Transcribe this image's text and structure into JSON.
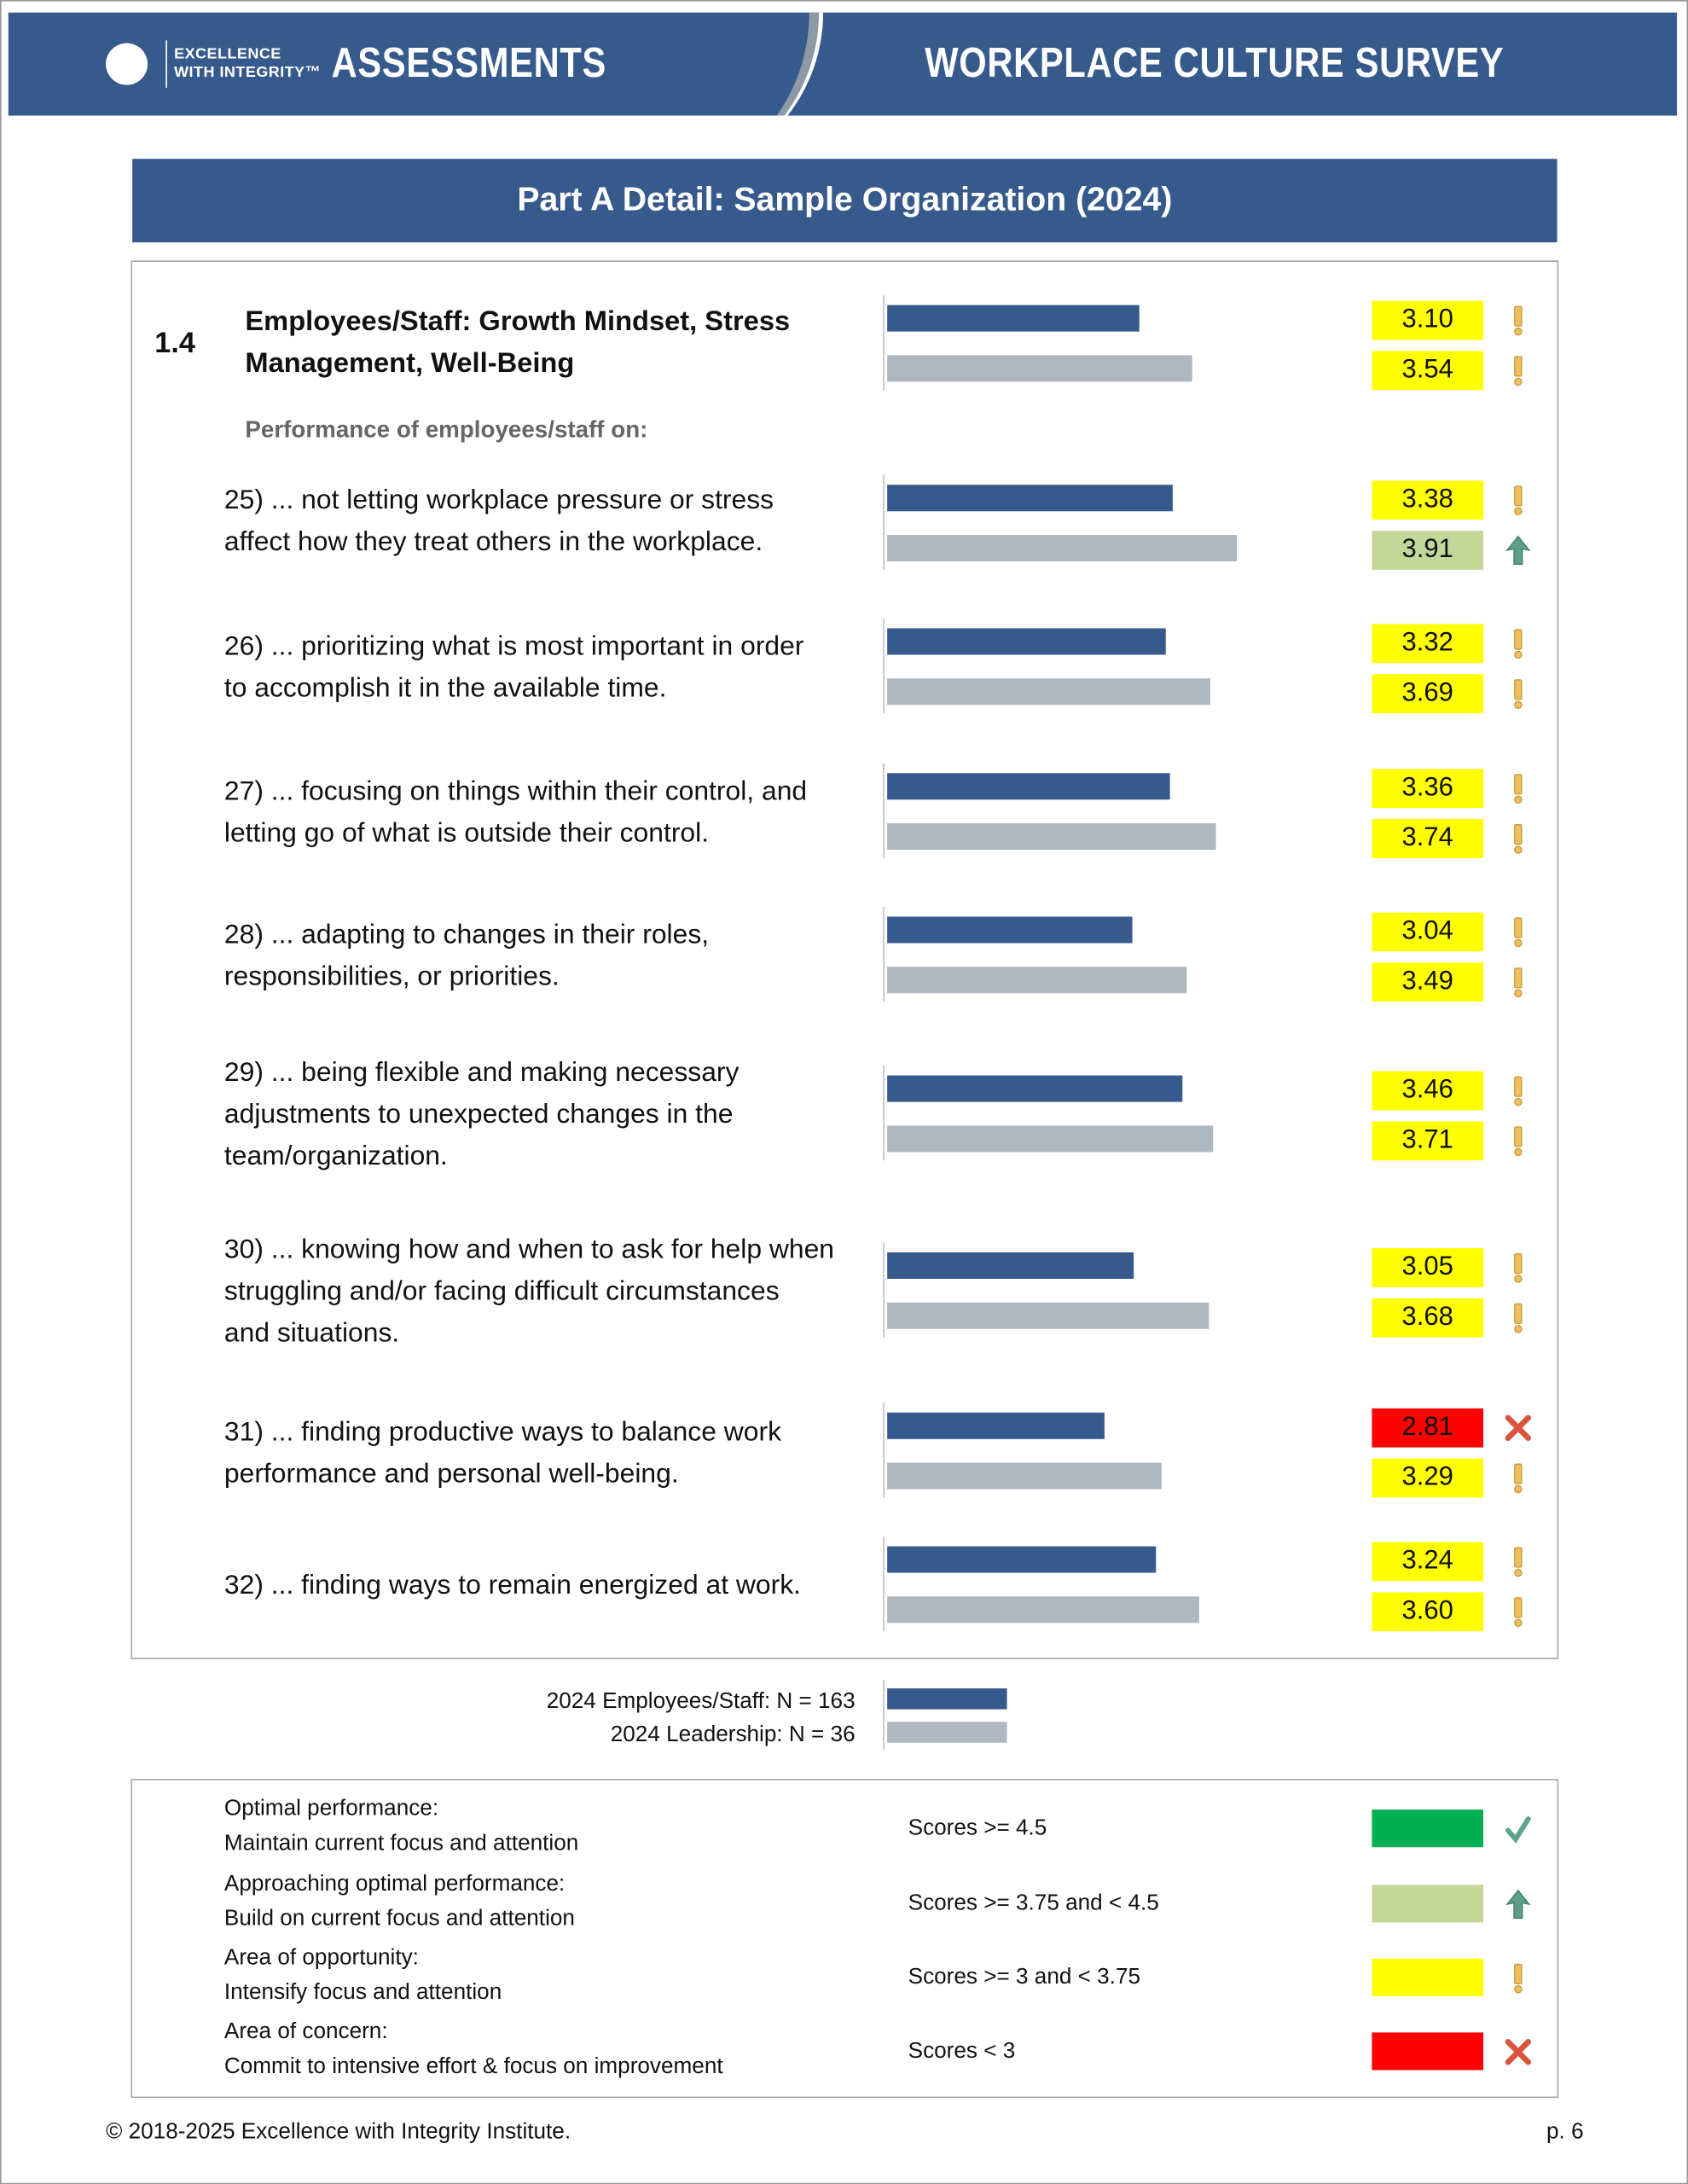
{
  "header": {
    "logo_line1": "EXCELLENCE",
    "logo_line2": "WITH INTEGRITY™",
    "product": "ASSESSMENTS",
    "survey": "WORKPLACE CULTURE SURVEY"
  },
  "page_title": "Part A Detail: Sample Organization (2024)",
  "section": {
    "number": "1.4",
    "title_lines": [
      "Employees/Staff: Growth Mindset, Stress",
      "Management, Well-Being"
    ],
    "employees_score": 3.1,
    "leadership_score": 3.54,
    "employees_label": "3.10",
    "leadership_label": "3.54",
    "employees_status": "opportunity",
    "leadership_status": "opportunity",
    "subheading": "Performance of employees/staff on:"
  },
  "items": [
    {
      "lines": [
        "25) ... not letting workplace pressure or stress",
        "affect how they treat others in the workplace."
      ],
      "employees": 3.38,
      "leadership": 3.91,
      "employees_label": "3.38",
      "leadership_label": "3.91",
      "employees_status": "opportunity",
      "leadership_status": "approaching"
    },
    {
      "lines": [
        "26) ... prioritizing what is most important in order",
        "to accomplish it in the available time."
      ],
      "employees": 3.32,
      "leadership": 3.69,
      "employees_label": "3.32",
      "leadership_label": "3.69",
      "employees_status": "opportunity",
      "leadership_status": "opportunity"
    },
    {
      "lines": [
        "27) ... focusing on things within their control, and",
        "letting go of what is outside their control."
      ],
      "employees": 3.36,
      "leadership": 3.74,
      "employees_label": "3.36",
      "leadership_label": "3.74",
      "employees_status": "opportunity",
      "leadership_status": "opportunity"
    },
    {
      "lines": [
        "28) ... adapting to changes in their roles,",
        "responsibilities, or priorities."
      ],
      "employees": 3.04,
      "leadership": 3.49,
      "employees_label": "3.04",
      "leadership_label": "3.49",
      "employees_status": "opportunity",
      "leadership_status": "opportunity"
    },
    {
      "lines": [
        "29) ... being flexible and making necessary",
        "adjustments to unexpected changes in the",
        "team/organization."
      ],
      "employees": 3.46,
      "leadership": 3.71,
      "employees_label": "3.46",
      "leadership_label": "3.71",
      "employees_status": "opportunity",
      "leadership_status": "opportunity"
    },
    {
      "lines": [
        "30) ... knowing how and when to ask for help when",
        "struggling and/or facing difficult circumstances",
        "and situations."
      ],
      "employees": 3.05,
      "leadership": 3.68,
      "employees_label": "3.05",
      "leadership_label": "3.68",
      "employees_status": "opportunity",
      "leadership_status": "opportunity"
    },
    {
      "lines": [
        "31) ... finding productive ways to balance work",
        "performance and personal well-being."
      ],
      "employees": 2.81,
      "leadership": 3.29,
      "employees_label": "2.81",
      "leadership_label": "3.29",
      "employees_status": "concern",
      "leadership_status": "opportunity"
    },
    {
      "lines": [
        "32) ... finding ways to remain energized at work."
      ],
      "employees": 3.24,
      "leadership": 3.6,
      "employees_label": "3.24",
      "leadership_label": "3.60",
      "employees_status": "opportunity",
      "leadership_status": "opportunity"
    }
  ],
  "scale": {
    "min": 1,
    "max": 5
  },
  "series_legend": {
    "employees": "2024 Employees/Staff: N = 163",
    "leadership": "2024 Leadership: N = 36",
    "employees_color": "#375A8C",
    "leadership_color": "#AFB7C1"
  },
  "status_legend": [
    {
      "key": "optimal",
      "title": "Optimal performance:",
      "action": "Maintain current focus and attention",
      "range": "Scores >= 4.5",
      "color": "#00B050",
      "icon": "check-icon"
    },
    {
      "key": "approaching",
      "title": "Approaching optimal performance:",
      "action": "Build on current focus and attention",
      "range": "Scores >= 3.75 and < 4.5",
      "color": "#C4D79B",
      "icon": "arrow-up-icon"
    },
    {
      "key": "opportunity",
      "title": "Area of opportunity:",
      "action": "Intensify focus and attention",
      "range": "Scores >= 3 and < 3.75",
      "color": "#FFFF00",
      "icon": "exclamation-icon"
    },
    {
      "key": "concern",
      "title": "Area of concern:",
      "action": "Commit to intensive effort & focus on improvement",
      "range": "Scores < 3",
      "color": "#FF0000",
      "icon": "x-icon"
    }
  ],
  "footer": {
    "copyright": "© 2018-2025 Excellence with Integrity Institute.",
    "page": "p. 6"
  }
}
